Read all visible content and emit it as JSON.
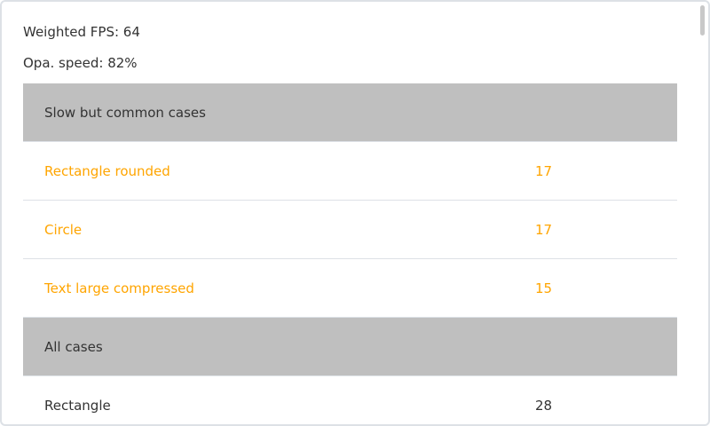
{
  "stats": {
    "weighted_fps": "Weighted FPS: 64",
    "opa_speed": "Opa. speed: 82%"
  },
  "colors": {
    "slow": "#ffa500",
    "header_bg": "#bfbfbf",
    "text": "#333333"
  },
  "sections": [
    {
      "title": "Slow but common cases",
      "rows": [
        {
          "name": "Rectangle rounded",
          "fps": "17"
        },
        {
          "name": "Circle",
          "fps": "17"
        },
        {
          "name": "Text large compressed",
          "fps": "15"
        }
      ]
    },
    {
      "title": "All cases",
      "rows": [
        {
          "name": "Rectangle",
          "fps": "28"
        }
      ]
    }
  ]
}
